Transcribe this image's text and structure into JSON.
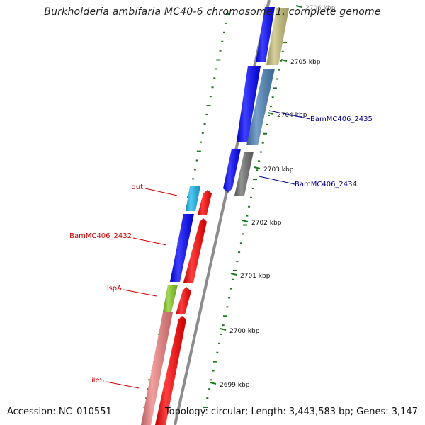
{
  "title": "Burkholderia ambifaria MC40-6 chromosome 1, complete genome",
  "accession": "Accession: NC_010551",
  "summary": "Topology: circular; Length: 3,443,583 bp; Genes: 3,147",
  "ticks": [
    "2706 kbp",
    "2705 kbp",
    "2704 kbp",
    "2703 kbp",
    "2702 kbp",
    "2701 kbp",
    "2700 kbp",
    "2699 kbp"
  ],
  "gene_labels": [
    {
      "text": "dut",
      "side": "left",
      "color": "#cc0000"
    },
    {
      "text": "BamMC406_2432",
      "side": "left",
      "color": "#cc0000"
    },
    {
      "text": "lspA",
      "side": "left",
      "color": "#cc0000"
    },
    {
      "text": "ileS",
      "side": "left",
      "color": "#cc0000"
    },
    {
      "text": "BamMC406_2435",
      "side": "right",
      "color": "#00008b"
    },
    {
      "text": "BamMC406_2434",
      "side": "right",
      "color": "#00008b"
    }
  ],
  "colors": {
    "backbone": "#8c8c8c",
    "tick_text": "#111111",
    "dotted_track": "#1a7a1a",
    "blue": "#0000ff",
    "red": "#ff0000",
    "khaki": "#c8bf7a",
    "steelblue": "#4a82b8",
    "grey": "#6e6e6e",
    "cyan": "#1ab8f0",
    "green": "#88cc22",
    "pink": "#f08080"
  }
}
